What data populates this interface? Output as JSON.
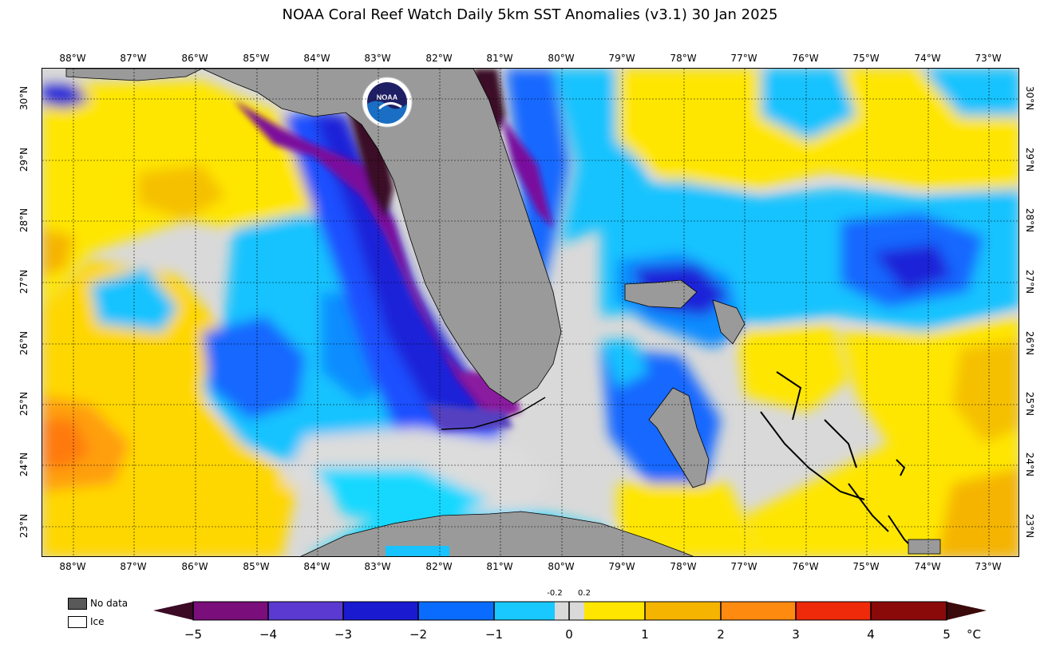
{
  "title": "NOAA Coral Reef Watch Daily 5km SST Anomalies  (v3.1)   30 Jan 2025",
  "logo_text": "NOAA",
  "longitude_ticks": [
    "88°W",
    "87°W",
    "86°W",
    "85°W",
    "84°W",
    "83°W",
    "82°W",
    "81°W",
    "80°W",
    "79°W",
    "78°W",
    "77°W",
    "76°W",
    "75°W",
    "74°W",
    "73°W"
  ],
  "latitude_ticks": [
    "30°N",
    "29°N",
    "28°N",
    "27°N",
    "26°N",
    "25°N",
    "24°N",
    "23°N"
  ],
  "legend": {
    "no_data_label": "No data",
    "no_data_color": "#595959",
    "ice_label": "Ice",
    "ice_color": "#ffffff"
  },
  "colorbar": {
    "tick_labels": [
      "−5",
      "−4",
      "−3",
      "−2",
      "−1",
      "0",
      "1",
      "2",
      "3",
      "4",
      "5"
    ],
    "small_labels": [
      "-0.2",
      "0.2"
    ],
    "unit": "°C",
    "land_color": "#9a9a9a",
    "near_zero_color": "#d9d9d9"
  }
}
